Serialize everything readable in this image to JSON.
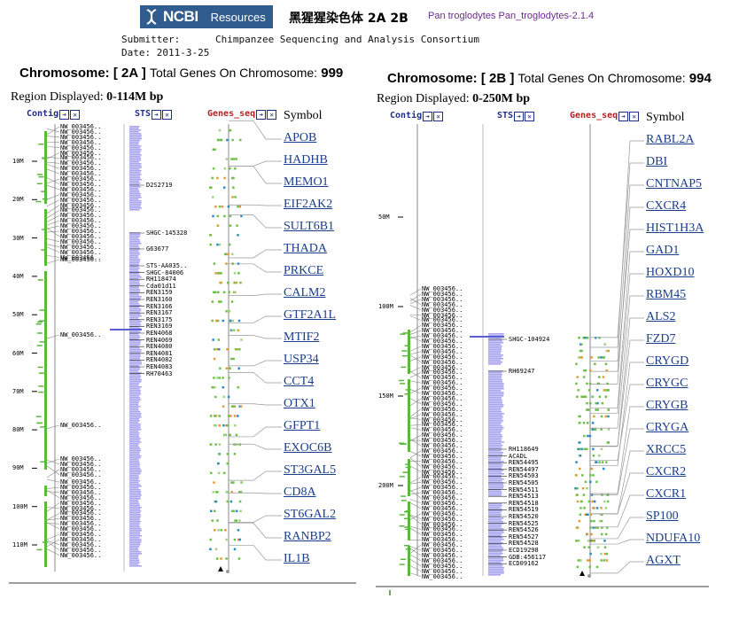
{
  "header": {
    "logo": "NCBI",
    "resources": "Resources",
    "title_zh": "黑猩猩染色体 2A  2B",
    "species": "Pan troglodytes Pan_troglodytes-2.1.4",
    "submitter_line": "Submitter:      Chimpanzee Sequencing and Analysis Consortium",
    "date_line": "Date: 2011-3-25"
  },
  "panels": [
    {
      "chromosome_label": "Chromosome:",
      "chromosome_name": "[ 2A ]",
      "total_genes_label": "Total Genes On Chromosome:",
      "total_genes": "999",
      "region_label": "Region Displayed:",
      "region_value": "0-114M bp",
      "tracks": {
        "contig": "Contig",
        "sts": "STS",
        "genes": "Genes_seq",
        "symbol": "Symbol"
      },
      "ruler_ticks": [
        "10M",
        "20M",
        "30M",
        "40M",
        "50M",
        "60M",
        "70M",
        "80M",
        "90M",
        "100M",
        "110M"
      ],
      "contig_label": "NW_003456..",
      "sts_labels": [
        "D2S2719",
        "SHGC-145328",
        "G63677",
        "STS-AA035..",
        "SHGC-84006",
        "RH118474",
        "Cda01d11",
        "REN3159",
        "REN3160",
        "REN3166",
        "REN3167",
        "REN3175",
        "REN3169",
        "REN4068",
        "REN4069",
        "REN4080",
        "REN4081",
        "REN4082",
        "REN4083",
        "RH70463"
      ],
      "symbols": [
        "APOB",
        "HADHB",
        "MEMO1",
        "EIF2AK2",
        "SULT6B1",
        "THADA",
        "PRKCE",
        "CALM2",
        "GTF2A1L",
        "MTIF2",
        "USP34",
        "CCT4",
        "OTX1",
        "GFPT1",
        "EXOC6B",
        "ST3GAL5",
        "CD8A",
        "ST6GAL2",
        "RANBP2",
        "IL1B"
      ]
    },
    {
      "chromosome_label": "Chromosome:",
      "chromosome_name": "[ 2B ]",
      "total_genes_label": "Total Genes On Chromosome:",
      "total_genes": "994",
      "region_label": "Region Displayed:",
      "region_value": "0-250M bp",
      "tracks": {
        "contig": "Contig",
        "sts": "STS",
        "genes": "Genes_seq",
        "symbol": "Symbol"
      },
      "ruler_ticks": [
        "50M",
        "100M",
        "150M",
        "200M"
      ],
      "contig_label": "NW_003456..",
      "sts_labels": [
        "SHGC-104924",
        "RH69247",
        "RH118649",
        "ACADL",
        "REN54495",
        "REN54497",
        "REN54503",
        "REN54505",
        "REN54511",
        "REN54513",
        "REN54518",
        "REN54519",
        "REN54520",
        "REN54525",
        "REN54526",
        "REN54527",
        "REN54528",
        "ECD19298",
        "GDB:456117",
        "ECD09162"
      ],
      "symbols": [
        "RABL2A",
        "DBI",
        "CNTNAP5",
        "CXCR4",
        "HIST1H3A",
        "GAD1",
        "HOXD10",
        "RBM45",
        "ALS2",
        "FZD7",
        "CRYGD",
        "CRYGC",
        "CRYGB",
        "CRYGA",
        "XRCC5",
        "CXCR2",
        "CXCR1",
        "SP100",
        "NDUFA10",
        "AGXT"
      ]
    }
  ],
  "colors": {
    "contig": "#1f2d8a",
    "sts": "#1f2d8a",
    "genes": "#b22222",
    "bar_green": "#5bb83a",
    "sts_bar": "#a9a4ef",
    "link": "#1a3e8c"
  }
}
